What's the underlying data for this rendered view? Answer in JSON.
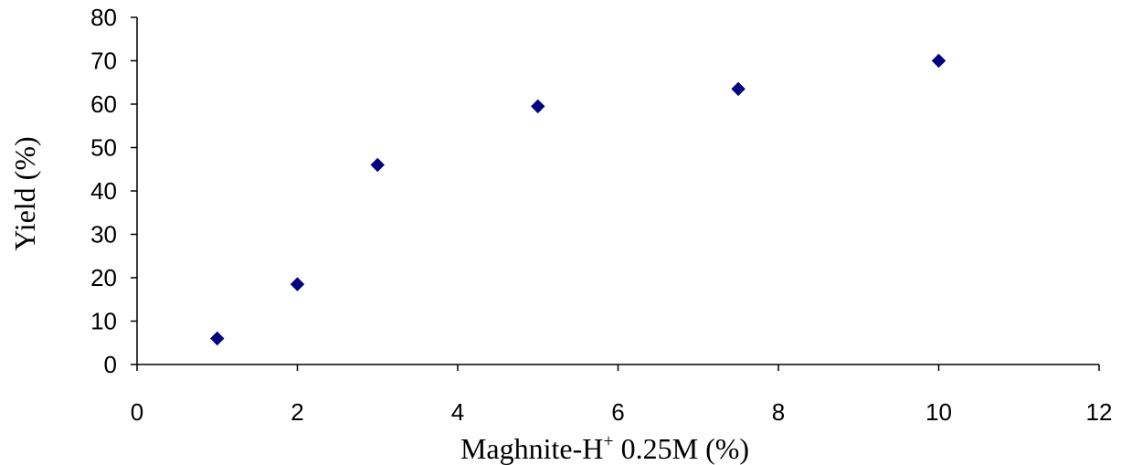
{
  "chart_data": {
    "type": "scatter",
    "ylabel": "Yield (%)",
    "xlabel_parts": {
      "main": "Maghnite-H",
      "superscript": "+",
      "suffix": " 0.25M (%)"
    },
    "xlim": [
      0,
      12
    ],
    "ylim": [
      0,
      80
    ],
    "xticks": [
      0,
      2,
      4,
      6,
      8,
      10,
      12
    ],
    "yticks": [
      0,
      10,
      20,
      30,
      40,
      50,
      60,
      70,
      80
    ],
    "grid": false,
    "marker": "diamond",
    "marker_color": "#000080",
    "points": [
      {
        "x": 1,
        "y": 6
      },
      {
        "x": 2,
        "y": 18.5
      },
      {
        "x": 3,
        "y": 46
      },
      {
        "x": 5,
        "y": 59.5
      },
      {
        "x": 7.5,
        "y": 63.5
      },
      {
        "x": 10,
        "y": 70
      }
    ]
  }
}
